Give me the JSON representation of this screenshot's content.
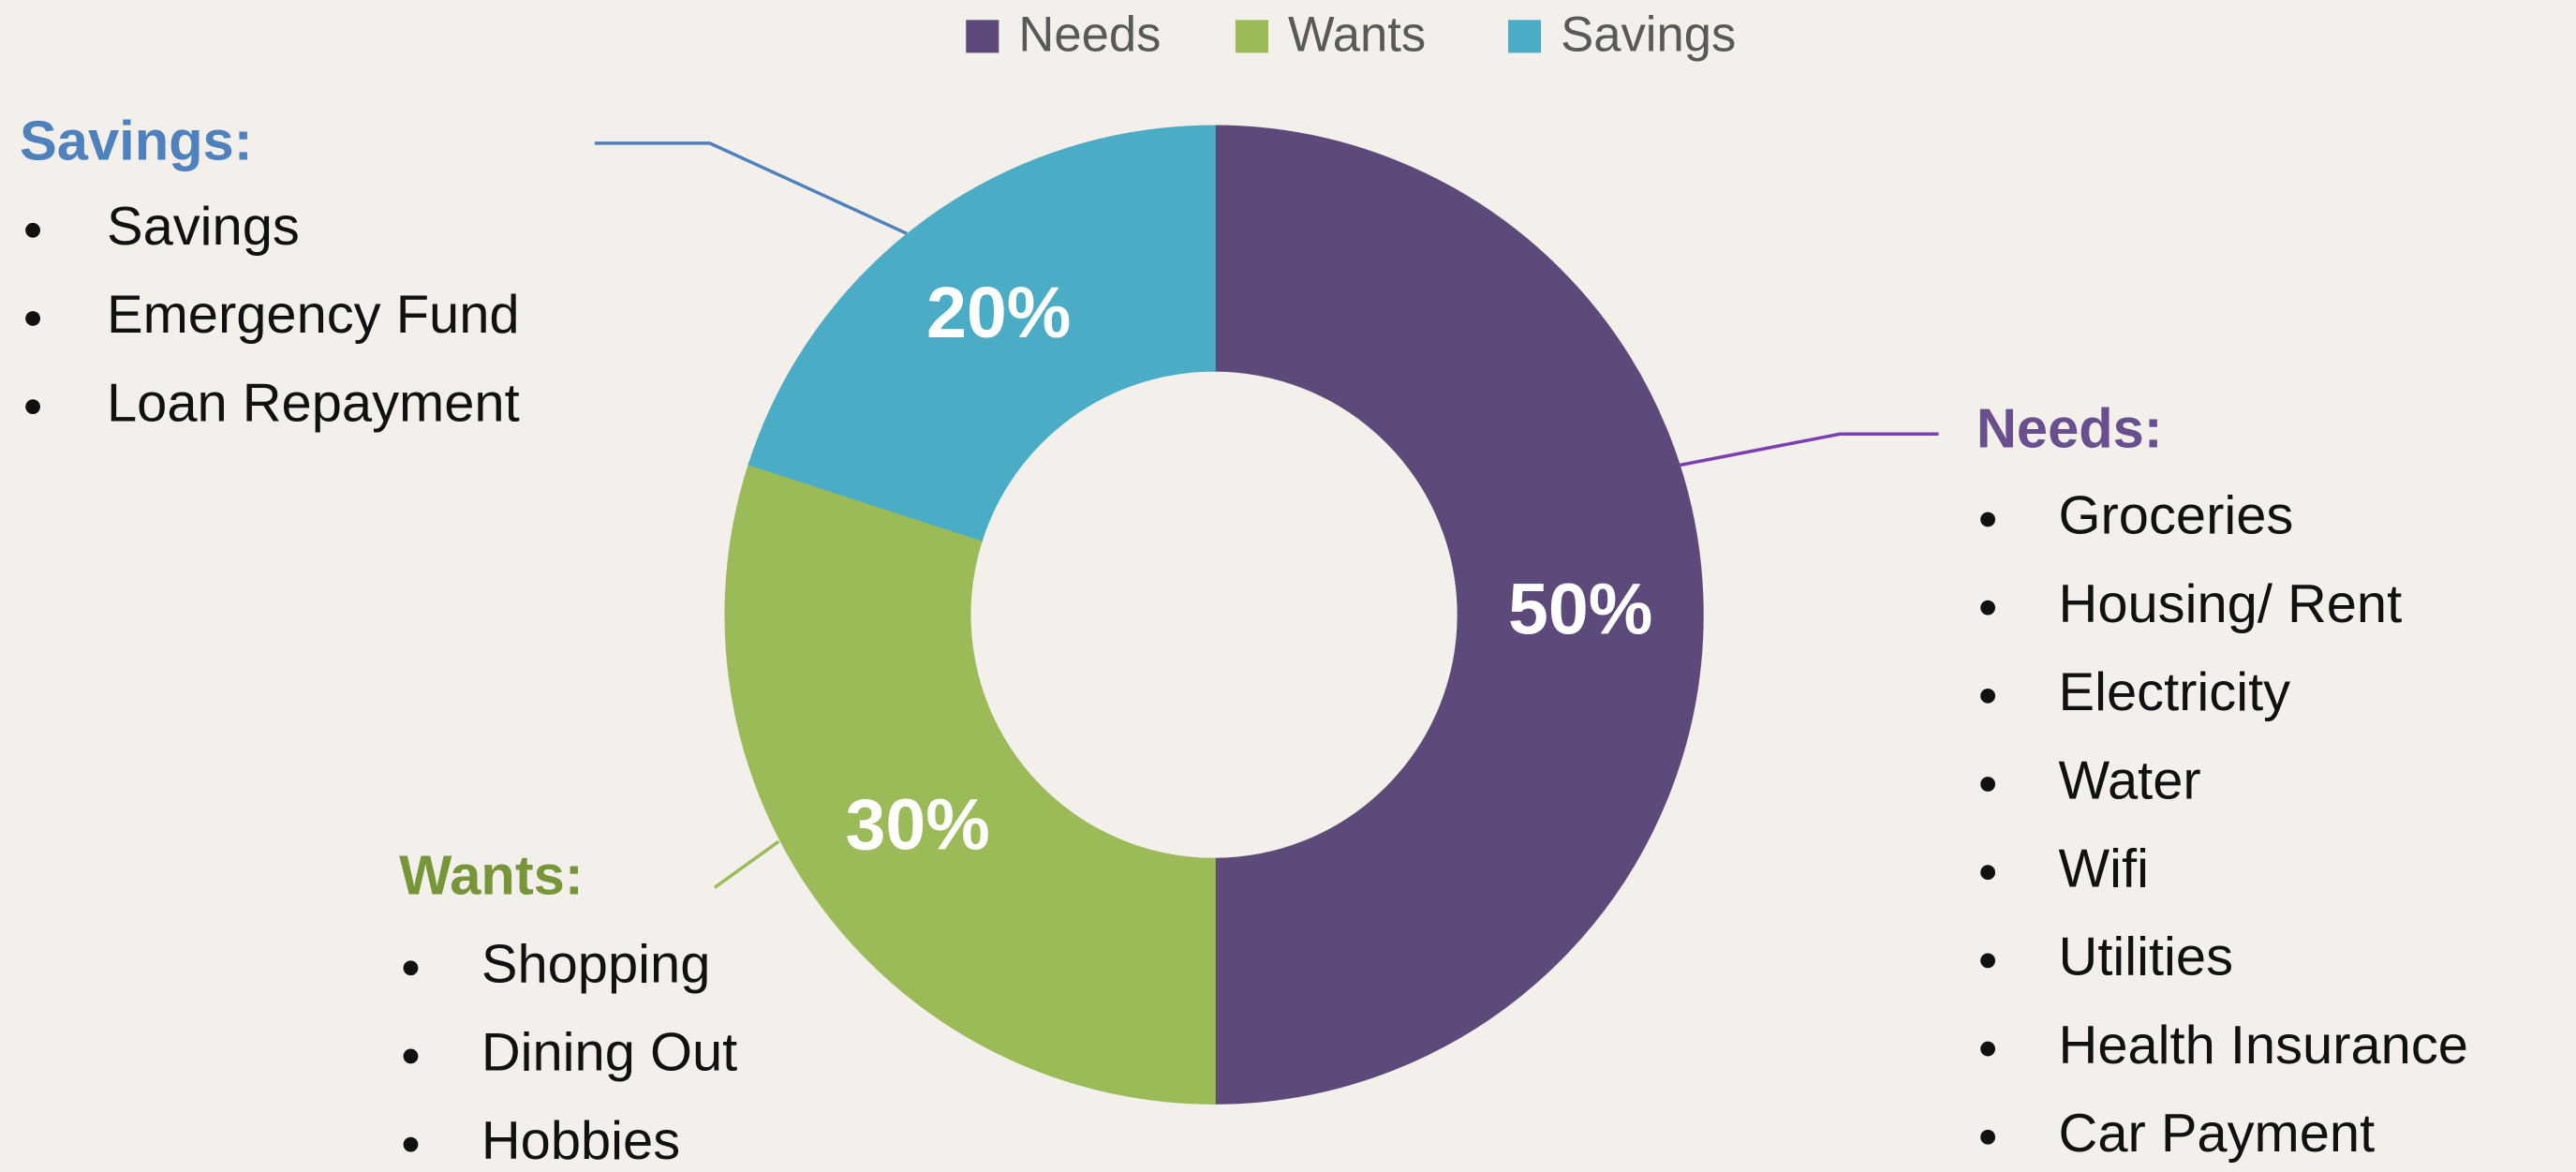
{
  "chart_data": {
    "type": "donut",
    "categories": [
      "Needs",
      "Wants",
      "Savings"
    ],
    "values": [
      50,
      30,
      20
    ],
    "value_labels": [
      "50%",
      "30%",
      "20%"
    ],
    "colors": [
      "#5e4a7a",
      "#9bbb59",
      "#4bacc6"
    ],
    "legend": "top",
    "annotations": [
      {
        "title": "Needs:",
        "items": [
          "Groceries",
          "Housing/ Rent",
          "Electricity",
          "Water",
          "Wifi",
          "Utilities",
          "Health Insurance",
          "Car Payment"
        ]
      },
      {
        "title": "Wants:",
        "items": [
          "Shopping",
          "Dining Out",
          "Hobbies"
        ]
      },
      {
        "title": "Savings:",
        "items": [
          "Savings",
          "Emergency Fund",
          "Loan Repayment"
        ]
      }
    ]
  }
}
